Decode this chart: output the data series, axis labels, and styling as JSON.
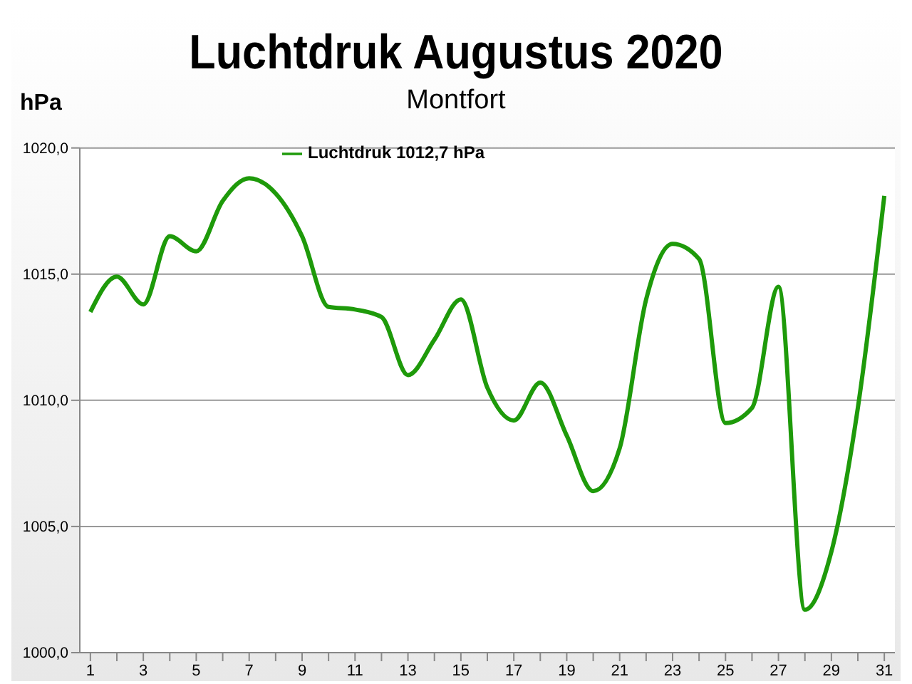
{
  "chart_data": {
    "type": "line",
    "title": "Luchtdruk Augustus 2020",
    "subtitle": "Montfort",
    "ylabel": "hPa",
    "x": [
      1,
      2,
      3,
      4,
      5,
      6,
      7,
      8,
      9,
      10,
      11,
      12,
      13,
      14,
      15,
      16,
      17,
      18,
      19,
      20,
      21,
      22,
      23,
      24,
      25,
      26,
      27,
      28,
      29,
      30,
      31
    ],
    "xlim": [
      0.6,
      31.4
    ],
    "xticks": [
      1,
      {
        "value": 2,
        "label": null
      },
      3,
      {
        "value": 4,
        "label": null
      },
      5,
      {
        "value": 6,
        "label": null
      },
      7,
      {
        "value": 8,
        "label": null
      },
      9,
      {
        "value": 10,
        "label": null
      },
      11,
      {
        "value": 12,
        "label": null
      },
      13,
      {
        "value": 14,
        "label": null
      },
      15,
      {
        "value": 16,
        "label": null
      },
      17,
      {
        "value": 18,
        "label": null
      },
      19,
      {
        "value": 20,
        "label": null
      },
      21,
      {
        "value": 22,
        "label": null
      },
      23,
      {
        "value": 24,
        "label": null
      },
      25,
      {
        "value": 26,
        "label": null
      },
      27,
      {
        "value": 28,
        "label": null
      },
      29,
      {
        "value": 30,
        "label": null
      },
      31
    ],
    "series": [
      {
        "name": "Luchtdruk 1012,7 hPa",
        "color": "#1e9a0a",
        "values": [
          1013.5,
          1014.9,
          1013.8,
          1016.5,
          1015.9,
          1017.9,
          1018.8,
          1018.2,
          1016.5,
          1013.7,
          1013.6,
          1013.3,
          1011.0,
          1012.4,
          1014.0,
          1010.5,
          1009.2,
          1010.7,
          1008.6,
          1006.4,
          1008.1,
          1014.0,
          1016.2,
          1015.6,
          1009.1,
          1009.7,
          1014.5,
          1001.7,
          1004.0,
          1009.7,
          1018.1
        ]
      }
    ],
    "ylim": [
      1000,
      1020
    ],
    "yticks": [
      {
        "value": 1000,
        "label": "1000,0"
      },
      {
        "value": 1005,
        "label": "1005,0"
      },
      {
        "value": 1010,
        "label": "1010,0"
      },
      {
        "value": 1015,
        "label": "1015,0"
      },
      {
        "value": 1020,
        "label": "1020,0"
      }
    ],
    "grid": "y",
    "legend": "top left",
    "marker": "none",
    "line_style": "solid"
  }
}
